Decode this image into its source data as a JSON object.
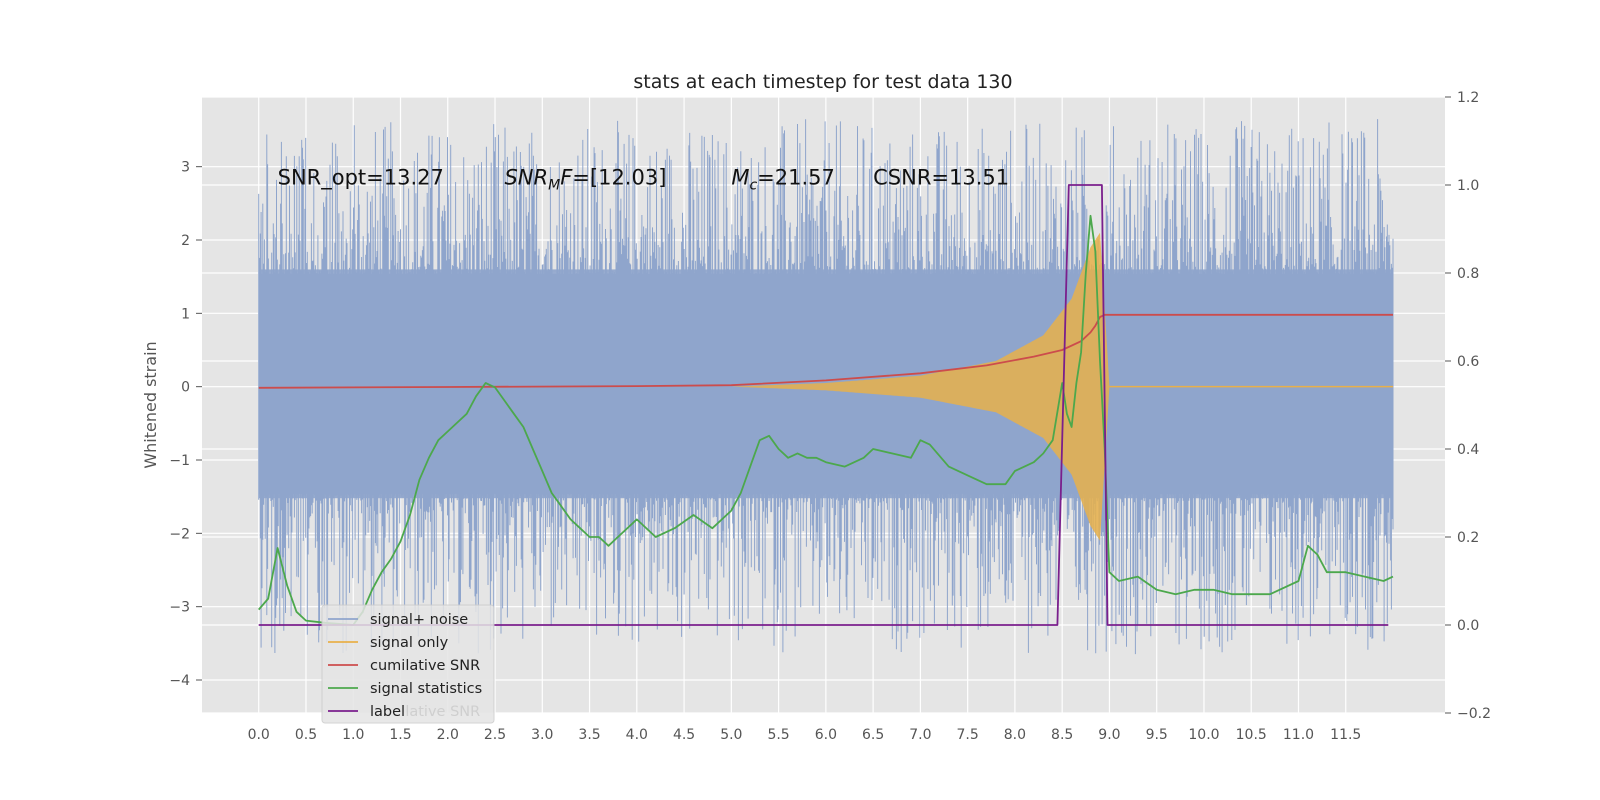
{
  "chart_data": {
    "type": "line",
    "title": "stats at each timestep for test data 130",
    "ylabel": "Whitened strain",
    "xlim": [
      -0.6,
      12.55
    ],
    "ylim": [
      -4.45,
      3.95
    ],
    "y2lim": [
      -0.2,
      1.2
    ],
    "x_ticks": [
      "0.0",
      "0.5",
      "1.0",
      "1.5",
      "2.0",
      "2.5",
      "3.0",
      "3.5",
      "4.0",
      "4.5",
      "5.0",
      "5.5",
      "6.0",
      "6.5",
      "7.0",
      "7.5",
      "8.0",
      "8.5",
      "9.0",
      "9.5",
      "10.0",
      "10.5",
      "11.0",
      "11.5"
    ],
    "y_ticks": [
      "3",
      "2",
      "1",
      "0",
      "−1",
      "−2",
      "−3",
      "−4"
    ],
    "y2_ticks": [
      "1.2",
      "1.0",
      "0.8",
      "0.6",
      "0.4",
      "0.2",
      "0.0",
      "−0.2"
    ],
    "grid": true,
    "legend_position": "lower-left",
    "annotations": [
      {
        "text": "SNR_opt=13.27",
        "x": 0.2,
        "y": 2.85
      },
      {
        "text": "SNR_MF=[12.03]",
        "x": 2.6,
        "y": 2.85,
        "math_base": "SNR",
        "math_sub": "M",
        "math_tail": "F=[12.03]"
      },
      {
        "text": "M_c=21.57",
        "x": 5.0,
        "y": 2.85,
        "math_base": "M",
        "math_sub": "c",
        "math_tail": "=21.57"
      },
      {
        "text": "CSNR=13.51",
        "x": 6.5,
        "y": 2.85
      }
    ],
    "series": [
      {
        "name": "signal+ noise",
        "color": "#8fa5cc",
        "axis": "left",
        "kind": "noise",
        "x_range": [
          0.0,
          12.0
        ],
        "band": [
          -1.95,
          2.05
        ],
        "extremes": [
          -3.65,
          3.65
        ]
      },
      {
        "name": "signal only",
        "color": "#e8b04a",
        "axis": "left",
        "kind": "chirp",
        "x_range": [
          5.0,
          9.0
        ],
        "envelope_x": [
          5.0,
          6.0,
          7.0,
          7.8,
          8.3,
          8.6,
          8.8,
          8.9,
          9.0
        ],
        "envelope_y": [
          0.0,
          0.05,
          0.15,
          0.35,
          0.7,
          1.2,
          1.9,
          2.1,
          0.0
        ]
      },
      {
        "name": "cumilative SNR",
        "color": "#cc4c4c",
        "axis": "right",
        "x": [
          0.0,
          2.0,
          4.0,
          5.0,
          6.0,
          7.0,
          7.7,
          8.2,
          8.5,
          8.7,
          8.8,
          8.85,
          8.9,
          8.95,
          9.0,
          12.0
        ],
        "y": [
          0.539,
          0.541,
          0.543,
          0.545,
          0.556,
          0.572,
          0.59,
          0.61,
          0.625,
          0.645,
          0.665,
          0.68,
          0.7,
          0.705,
          0.705,
          0.705
        ]
      },
      {
        "name": "signal statistics",
        "color": "#4ca84c",
        "axis": "right",
        "x": [
          0.0,
          0.1,
          0.2,
          0.3,
          0.4,
          0.5,
          0.7,
          1.0,
          1.1,
          1.2,
          1.3,
          1.4,
          1.5,
          1.6,
          1.7,
          1.8,
          1.9,
          2.0,
          2.1,
          2.2,
          2.3,
          2.4,
          2.5,
          2.6,
          2.7,
          2.8,
          2.9,
          3.0,
          3.1,
          3.2,
          3.3,
          3.4,
          3.5,
          3.6,
          3.7,
          3.8,
          4.0,
          4.2,
          4.4,
          4.6,
          4.8,
          5.0,
          5.1,
          5.2,
          5.3,
          5.4,
          5.5,
          5.6,
          5.7,
          5.8,
          5.9,
          6.0,
          6.2,
          6.4,
          6.5,
          6.7,
          6.9,
          7.0,
          7.1,
          7.3,
          7.5,
          7.7,
          7.9,
          8.0,
          8.2,
          8.3,
          8.4,
          8.5,
          8.55,
          8.6,
          8.65,
          8.7,
          8.75,
          8.8,
          8.85,
          8.9,
          8.95,
          9.0,
          9.1,
          9.3,
          9.5,
          9.7,
          9.9,
          10.1,
          10.3,
          10.5,
          10.7,
          11.0,
          11.1,
          11.2,
          11.3,
          11.5,
          11.7,
          11.9,
          12.0
        ],
        "y": [
          0.035,
          0.06,
          0.175,
          0.09,
          0.03,
          0.01,
          0.005,
          0.0,
          0.03,
          0.08,
          0.12,
          0.15,
          0.19,
          0.25,
          0.33,
          0.38,
          0.42,
          0.44,
          0.46,
          0.48,
          0.52,
          0.55,
          0.54,
          0.51,
          0.48,
          0.45,
          0.4,
          0.35,
          0.3,
          0.27,
          0.24,
          0.22,
          0.2,
          0.2,
          0.18,
          0.2,
          0.24,
          0.2,
          0.22,
          0.25,
          0.22,
          0.26,
          0.3,
          0.36,
          0.42,
          0.43,
          0.4,
          0.38,
          0.39,
          0.38,
          0.38,
          0.37,
          0.36,
          0.38,
          0.4,
          0.39,
          0.38,
          0.42,
          0.41,
          0.36,
          0.34,
          0.32,
          0.32,
          0.35,
          0.37,
          0.39,
          0.42,
          0.55,
          0.48,
          0.45,
          0.55,
          0.62,
          0.8,
          0.93,
          0.85,
          0.6,
          0.4,
          0.12,
          0.1,
          0.11,
          0.08,
          0.07,
          0.08,
          0.08,
          0.07,
          0.07,
          0.07,
          0.1,
          0.18,
          0.16,
          0.12,
          0.12,
          0.11,
          0.1,
          0.11
        ]
      },
      {
        "name": "label",
        "color": "#7a1f8c",
        "axis": "right",
        "x": [
          0.0,
          8.45,
          8.57,
          8.92,
          8.98,
          11.95
        ],
        "y": [
          0.0,
          0.0,
          1.0,
          1.0,
          0.0,
          0.0
        ]
      }
    ],
    "legend": {
      "entries": [
        "signal+ noise",
        "signal only",
        "cumilative SNR",
        "signal statistics",
        "label"
      ],
      "ghost_text": "cumilative SNR"
    }
  }
}
